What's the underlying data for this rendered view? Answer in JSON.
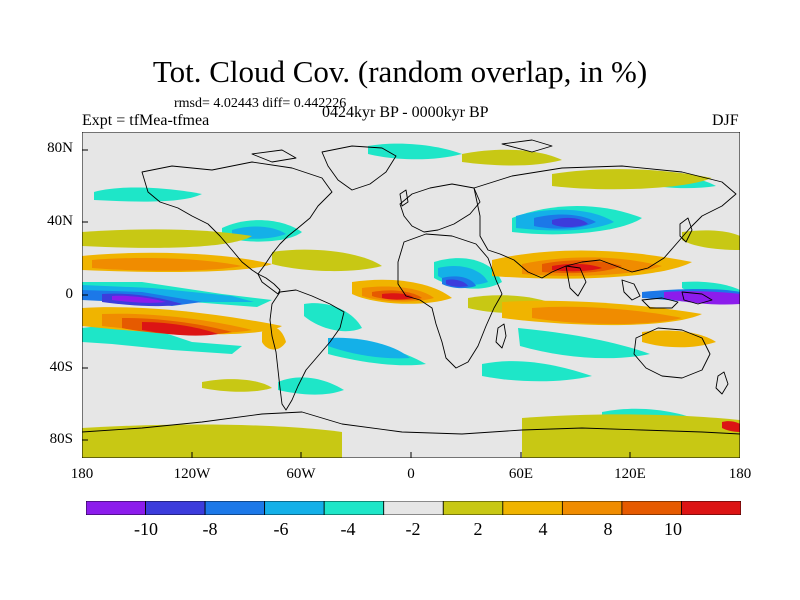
{
  "title": "Tot. Cloud Cov. (random overlap, in %)",
  "stats": "rmsd= 4.02443 diff= 0.442226",
  "experiment": "Expt = tfMea-tfmea",
  "period": "0424kyr BP - 0000kyr BP",
  "season": "DJF",
  "chart_data": {
    "type": "heatmap",
    "title": "Tot. Cloud Cov. (random overlap, in %)",
    "x_ticks": [
      "180",
      "120W",
      "60W",
      "0",
      "60E",
      "120E",
      "180"
    ],
    "y_ticks": [
      "80N",
      "40N",
      "0",
      "40S",
      "80S"
    ],
    "xlim": [
      -180,
      180
    ],
    "ylim": [
      -90,
      90
    ],
    "colorbar": {
      "levels": [
        -12,
        -10,
        -8,
        -6,
        -4,
        -2,
        2,
        4,
        8,
        10,
        12
      ],
      "tick_labels": [
        "-10",
        "-8",
        "-6",
        "-4",
        "-2",
        "2",
        "4",
        "8",
        "10"
      ],
      "colors": [
        "#8c1cec",
        "#3c3cdc",
        "#1c78e8",
        "#14b0e8",
        "#1ee6c8",
        "#e6e6e6",
        "#c8c814",
        "#f0b400",
        "#f08c00",
        "#e65a00",
        "#dc1414"
      ]
    }
  },
  "colors": {
    "background": "#e6e6e6",
    "coast": "#000000"
  }
}
